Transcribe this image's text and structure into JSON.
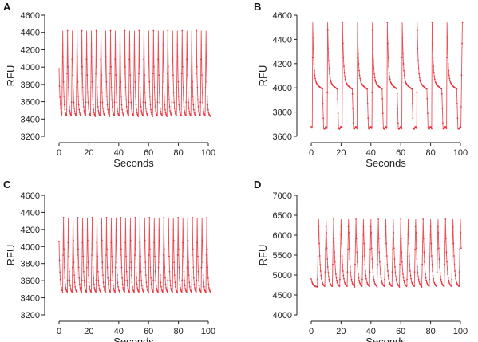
{
  "figure": {
    "trace_color": "#e8323c",
    "axis_color": "#222222"
  },
  "chart_data": [
    {
      "panel": "A",
      "type": "line",
      "xlabel": "Seconds",
      "ylabel": "RFU",
      "xlim": [
        0,
        100
      ],
      "ylim": [
        3200,
        4600
      ],
      "xticks": [
        0,
        20,
        40,
        60,
        80,
        100
      ],
      "yticks": [
        3200,
        3400,
        3600,
        3800,
        4000,
        4200,
        4400,
        4600
      ],
      "grid": false,
      "legend": "none",
      "waveform": {
        "baseline": 3430,
        "peak": 4420,
        "n_peaks": 31,
        "period_s": 3.2,
        "first_peak_s": 2.5,
        "start_value": 3980,
        "rise_s": 0.6,
        "decay_tau_s": 0.55,
        "end_s": 101.5
      }
    },
    {
      "panel": "B",
      "type": "line",
      "xlabel": "Seconds",
      "ylabel": "RFU",
      "xlim": [
        0,
        100
      ],
      "ylim": [
        3600,
        4600
      ],
      "xticks": [
        0,
        20,
        40,
        60,
        80,
        100
      ],
      "yticks": [
        3600,
        3800,
        4000,
        4200,
        4400,
        4600
      ],
      "grid": false,
      "legend": "none",
      "waveform": {
        "baseline": 3670,
        "peak": 4540,
        "plateau": 4050,
        "n_peaks": 10,
        "period_s": 10,
        "first_peak_s": 1.0,
        "start_value": 3680,
        "end_s": 101.5
      }
    },
    {
      "panel": "C",
      "type": "line",
      "xlabel": "Seconds",
      "ylabel": "RFU",
      "xlim": [
        0,
        100
      ],
      "ylim": [
        3200,
        4600
      ],
      "xticks": [
        0,
        20,
        40,
        60,
        80,
        100
      ],
      "yticks": [
        3200,
        3400,
        3600,
        3800,
        4000,
        4200,
        4400,
        4600
      ],
      "grid": false,
      "legend": "none",
      "waveform": {
        "baseline": 3460,
        "peak": 4340,
        "n_peaks": 31,
        "period_s": 3.2,
        "first_peak_s": 3.0,
        "start_value": 4060,
        "rise_s": 0.6,
        "decay_tau_s": 0.55,
        "end_s": 101.5
      }
    },
    {
      "panel": "D",
      "type": "line",
      "xlabel": "Seconds",
      "ylabel": "RFU",
      "xlim": [
        0,
        100
      ],
      "ylim": [
        4000,
        7000
      ],
      "xticks": [
        0,
        20,
        40,
        60,
        80,
        100
      ],
      "yticks": [
        4000,
        4500,
        5000,
        5500,
        6000,
        6500,
        7000
      ],
      "grid": false,
      "legend": "none",
      "waveform": {
        "baseline": 4700,
        "peak": 6400,
        "n_peaks": 20,
        "period_s": 5.0,
        "first_peak_s": 5.0,
        "start_value": 4900,
        "rise_s": 0.9,
        "decay_tau_s": 0.9,
        "end_s": 100.5
      }
    }
  ]
}
